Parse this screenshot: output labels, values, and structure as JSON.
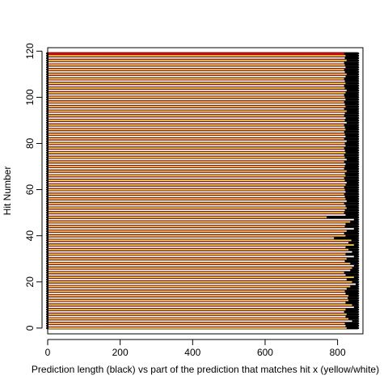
{
  "chart_data": {
    "type": "bar",
    "orientation": "horizontal",
    "title": "",
    "xlabel": "Prediction length (black) vs part of the prediction that matches hit x (yellow/white)",
    "ylabel": "Hit Number",
    "xlim": [
      0,
      870
    ],
    "ylim": [
      -2.5,
      121.5
    ],
    "x_ticks": [
      0,
      200,
      400,
      600,
      800
    ],
    "y_ticks": [
      0,
      20,
      40,
      60,
      80,
      100,
      120
    ],
    "grid": false,
    "legend": "none",
    "colors": {
      "prediction": "#000000",
      "match": "#ffd24a",
      "match_alt": "#ffffff",
      "top_hit": "#ff0000",
      "gap": "#8b1a1a"
    },
    "hits": 120,
    "prediction_length": [
      855,
      855,
      855,
      855,
      855,
      855,
      855,
      855,
      855,
      855,
      855,
      855,
      855,
      855,
      855,
      855,
      855,
      855,
      855,
      855,
      855,
      855,
      855,
      855,
      855,
      855,
      855,
      855,
      855,
      855,
      855,
      855,
      855,
      855,
      855,
      855,
      855,
      855,
      855,
      855,
      855,
      855,
      855,
      855,
      855,
      855,
      855,
      855,
      855,
      855,
      855,
      855,
      855,
      855,
      855,
      855,
      855,
      855,
      855,
      855,
      855,
      855,
      855,
      855,
      855,
      855,
      855,
      855,
      855,
      855,
      855,
      855,
      855,
      855,
      855,
      855,
      855,
      855,
      855,
      855,
      855,
      855,
      855,
      855,
      855,
      855,
      855,
      855,
      855,
      855,
      855,
      855,
      855,
      855,
      855,
      855,
      855,
      855,
      855,
      855,
      855,
      855,
      855,
      855,
      855,
      855,
      855,
      855,
      855,
      855,
      855,
      855,
      855,
      855,
      855,
      855,
      855,
      855,
      855,
      855
    ],
    "match_length": [
      825,
      822,
      820,
      840,
      830,
      822,
      825,
      818,
      822,
      845,
      840,
      822,
      830,
      828,
      830,
      822,
      820,
      825,
      835,
      850,
      840,
      825,
      845,
      822,
      818,
      835,
      840,
      845,
      835,
      820,
      825,
      845,
      822,
      840,
      830,
      822,
      845,
      830,
      838,
      790,
      822,
      818,
      825,
      845,
      820,
      822,
      835,
      845,
      770,
      822,
      818,
      820,
      825,
      822,
      818,
      825,
      822,
      820,
      818,
      822,
      820,
      818,
      822,
      825,
      820,
      818,
      822,
      820,
      825,
      818,
      820,
      822,
      818,
      825,
      820,
      818,
      822,
      820,
      818,
      822,
      820,
      825,
      818,
      822,
      820,
      818,
      822,
      820,
      818,
      825,
      820,
      822,
      818,
      820,
      825,
      818,
      822,
      820,
      818,
      822,
      820,
      818,
      822,
      825,
      820,
      818,
      822,
      820,
      818,
      822,
      825,
      820,
      818,
      822,
      820,
      818,
      825,
      820,
      822,
      818
    ],
    "start_offset": [
      0,
      0,
      0,
      0,
      0,
      0,
      0,
      0,
      0,
      0,
      0,
      0,
      0,
      0,
      0,
      0,
      0,
      0,
      0,
      0,
      0,
      0,
      0,
      0,
      0,
      0,
      0,
      0,
      0,
      0,
      0,
      0,
      0,
      0,
      0,
      0,
      0,
      0,
      0,
      0,
      0,
      0,
      0,
      0,
      0,
      0,
      0,
      0,
      0,
      0,
      0,
      0,
      0,
      0,
      0,
      0,
      0,
      0,
      0,
      0,
      0,
      0,
      0,
      0,
      0,
      0,
      0,
      0,
      0,
      0,
      0,
      0,
      0,
      0,
      0,
      0,
      0,
      0,
      0,
      0,
      0,
      0,
      0,
      0,
      0,
      0,
      0,
      0,
      0,
      0,
      0,
      0,
      0,
      0,
      0,
      0,
      0,
      0,
      0,
      0,
      0,
      0,
      0,
      0,
      0,
      0,
      0,
      0,
      0,
      0,
      0,
      0,
      0,
      0,
      0,
      0,
      0,
      0,
      0,
      0
    ]
  }
}
